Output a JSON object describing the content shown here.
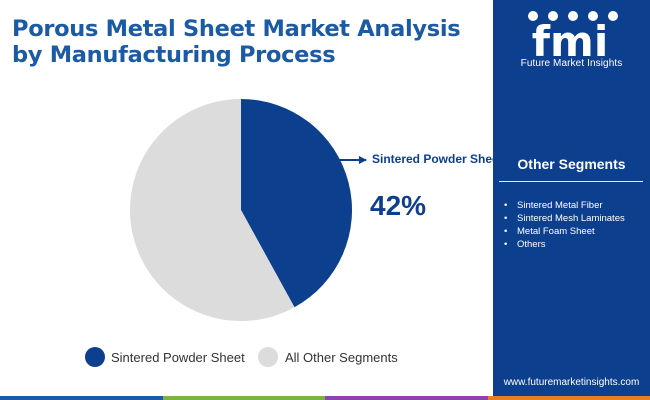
{
  "title": "Porous Metal Sheet Market Analysis by Manufacturing Process",
  "chart_data": {
    "type": "pie",
    "title": "Porous Metal Sheet Market Analysis by Manufacturing Process",
    "slices": [
      {
        "label": "Sintered Powder Sheet",
        "value": 42,
        "color": "#0d3f8f"
      },
      {
        "label": "All Other Segments",
        "value": 58,
        "color": "#dcdcdc"
      }
    ],
    "callout": {
      "label": "Sintered Powder Sheet",
      "value_label": "42%"
    },
    "legend": [
      "Sintered Powder Sheet",
      "All Other Segments"
    ],
    "legend_position": "bottom"
  },
  "sidebar": {
    "brand": "fmi",
    "brand_full": "Future Market Insights",
    "other_segments_title": "Other Segments",
    "other_segments": [
      "Sintered Metal Fiber",
      "Sintered Mesh Laminates",
      "Metal Foam Sheet",
      "Others"
    ],
    "website": "www.futuremarketinsights.com"
  },
  "colors": {
    "title": "#1b5aa4",
    "panel": "#0d3f8f",
    "primary_slice": "#0d3f8f",
    "other_slice": "#dcdcdc",
    "bar": [
      "#1b5aa4",
      "#7cb342",
      "#8e44ad",
      "#e67e22"
    ]
  }
}
